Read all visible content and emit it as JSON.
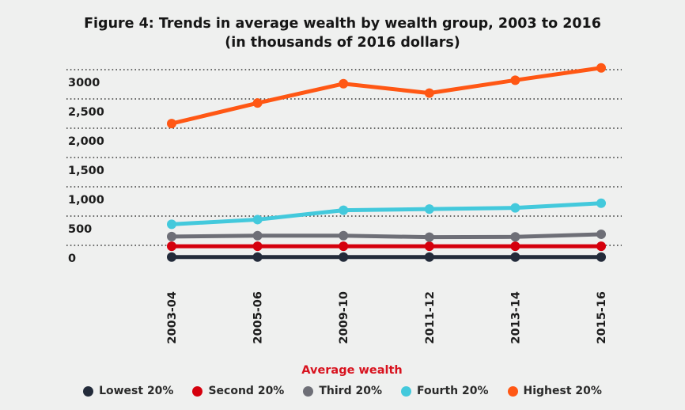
{
  "chart_data": {
    "type": "line",
    "title": "Figure 4: Trends in average wealth by wealth group, 2003 to 2016",
    "subtitle": "(in thousands of 2016 dollars)",
    "xlabel": "Average wealth",
    "ylabel": "",
    "categories": [
      "2003-04",
      "2005-06",
      "2009-10",
      "2011-12",
      "2013-14",
      "2015-16"
    ],
    "y_ticks": [
      "0",
      "500",
      "1,000",
      "1,500",
      "2,000",
      "2,500",
      "3000"
    ],
    "ylim": [
      0,
      3000
    ],
    "grid": "horizontal dotted",
    "legend_position": "bottom",
    "series": [
      {
        "name": "Lowest 20%",
        "color": "#232b3a",
        "values": [
          -200,
          -200,
          -200,
          -200,
          -200,
          -200
        ]
      },
      {
        "name": "Second 20%",
        "color": "#d5000d",
        "values": [
          -15,
          -15,
          -15,
          -15,
          -15,
          -15
        ]
      },
      {
        "name": "Third 20%",
        "color": "#6e6f77",
        "values": [
          150,
          165,
          165,
          140,
          145,
          190
        ]
      },
      {
        "name": "Fourth 20%",
        "color": "#43c9dc",
        "values": [
          360,
          440,
          600,
          620,
          640,
          720
        ]
      },
      {
        "name": "Highest 20%",
        "color": "#ff5714",
        "values": [
          2080,
          2430,
          2760,
          2600,
          2820,
          3030
        ]
      }
    ]
  }
}
